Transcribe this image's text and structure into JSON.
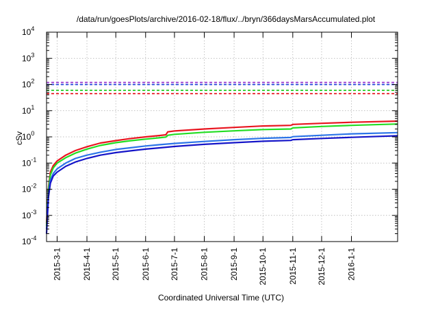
{
  "chart_data": {
    "type": "line",
    "title": "/data/run/goesPlots/archive/2016-02-18/flux/../bryn/366daysMarsAccumulated.plot",
    "xlabel": "Coordinated Universal Time (UTC)",
    "ylabel": "cSv",
    "yscale": "log",
    "ylim": [
      0.0001,
      10000
    ],
    "xlim": [
      "2015-02-18",
      "2016-02-18"
    ],
    "y_ticks": [
      {
        "base": "10",
        "exp": "-4",
        "value": 0.0001
      },
      {
        "base": "10",
        "exp": "-3",
        "value": 0.001
      },
      {
        "base": "10",
        "exp": "-2",
        "value": 0.01
      },
      {
        "base": "10",
        "exp": "-1",
        "value": 0.1
      },
      {
        "base": "10",
        "exp": "0",
        "value": 1
      },
      {
        "base": "10",
        "exp": "1",
        "value": 10
      },
      {
        "base": "10",
        "exp": "2",
        "value": 100
      },
      {
        "base": "10",
        "exp": "3",
        "value": 1000
      },
      {
        "base": "10",
        "exp": "4",
        "value": 10000
      }
    ],
    "x_ticks": [
      {
        "label": "2015-3-1",
        "date": "2015-03-01"
      },
      {
        "label": "2015-4-1",
        "date": "2015-04-01"
      },
      {
        "label": "2015-5-1",
        "date": "2015-05-01"
      },
      {
        "label": "2015-6-1",
        "date": "2015-06-01"
      },
      {
        "label": "2015-7-1",
        "date": "2015-07-01"
      },
      {
        "label": "2015-8-1",
        "date": "2015-08-01"
      },
      {
        "label": "2015-9-1",
        "date": "2015-09-01"
      },
      {
        "label": "2015-10-1",
        "date": "2015-10-01"
      },
      {
        "label": "2015-11-1",
        "date": "2015-11-01"
      },
      {
        "label": "2015-12-1",
        "date": "2015-12-01"
      },
      {
        "label": "2016-1-1",
        "date": "2016-01-01"
      }
    ],
    "grid": true,
    "series": [
      {
        "color": "#e8141e",
        "x": [
          "2015-02-18",
          "2015-02-20",
          "2015-02-22",
          "2015-02-25",
          "2015-03-01",
          "2015-03-10",
          "2015-03-20",
          "2015-04-01",
          "2015-04-15",
          "2015-05-01",
          "2015-05-15",
          "2015-06-01",
          "2015-06-15",
          "2015-06-22",
          "2015-06-24",
          "2015-07-01",
          "2015-08-01",
          "2015-09-01",
          "2015-10-01",
          "2015-10-30",
          "2015-11-01",
          "2015-12-01",
          "2016-01-01",
          "2016-02-18"
        ],
        "y": [
          0.0005,
          0.012,
          0.045,
          0.08,
          0.12,
          0.2,
          0.3,
          0.42,
          0.58,
          0.72,
          0.85,
          1.0,
          1.12,
          1.2,
          1.55,
          1.68,
          2.0,
          2.3,
          2.6,
          2.75,
          3.0,
          3.3,
          3.6,
          4.0
        ]
      },
      {
        "color": "#22dd22",
        "x": [
          "2015-02-18",
          "2015-02-20",
          "2015-02-22",
          "2015-02-25",
          "2015-03-01",
          "2015-03-10",
          "2015-03-20",
          "2015-04-01",
          "2015-04-15",
          "2015-05-01",
          "2015-05-15",
          "2015-06-01",
          "2015-06-15",
          "2015-06-22",
          "2015-06-24",
          "2015-07-01",
          "2015-08-01",
          "2015-09-01",
          "2015-10-01",
          "2015-10-30",
          "2015-11-01",
          "2015-12-01",
          "2016-01-01",
          "2016-02-18"
        ],
        "y": [
          0.0004,
          0.01,
          0.035,
          0.065,
          0.1,
          0.16,
          0.24,
          0.34,
          0.47,
          0.6,
          0.7,
          0.82,
          0.92,
          0.98,
          1.15,
          1.25,
          1.5,
          1.7,
          1.9,
          2.0,
          2.2,
          2.5,
          2.75,
          3.1
        ]
      },
      {
        "color": "#2b74e8",
        "x": [
          "2015-02-18",
          "2015-02-20",
          "2015-02-22",
          "2015-02-25",
          "2015-03-01",
          "2015-03-10",
          "2015-03-20",
          "2015-04-01",
          "2015-04-15",
          "2015-05-01",
          "2015-05-15",
          "2015-06-01",
          "2015-06-15",
          "2015-07-01",
          "2015-08-01",
          "2015-09-01",
          "2015-10-01",
          "2015-10-30",
          "2015-11-01",
          "2015-12-01",
          "2016-01-01",
          "2016-02-18"
        ],
        "y": [
          0.0003,
          0.007,
          0.022,
          0.04,
          0.06,
          0.1,
          0.15,
          0.2,
          0.26,
          0.33,
          0.38,
          0.45,
          0.5,
          0.56,
          0.67,
          0.78,
          0.88,
          0.95,
          1.02,
          1.15,
          1.3,
          1.45
        ]
      },
      {
        "color": "#1414c8",
        "x": [
          "2015-02-18",
          "2015-02-20",
          "2015-02-22",
          "2015-02-25",
          "2015-03-01",
          "2015-03-10",
          "2015-03-20",
          "2015-04-01",
          "2015-04-15",
          "2015-05-01",
          "2015-05-15",
          "2015-06-01",
          "2015-06-15",
          "2015-07-01",
          "2015-08-01",
          "2015-09-01",
          "2015-10-01",
          "2015-10-30",
          "2015-11-01",
          "2015-12-01",
          "2016-01-01",
          "2016-02-18"
        ],
        "y": [
          0.0002,
          0.005,
          0.017,
          0.032,
          0.045,
          0.075,
          0.11,
          0.15,
          0.2,
          0.25,
          0.29,
          0.34,
          0.38,
          0.43,
          0.52,
          0.6,
          0.68,
          0.73,
          0.78,
          0.87,
          0.96,
          1.1
        ]
      }
    ],
    "reference_lines": [
      {
        "color": "#9933cc",
        "y": 120
      },
      {
        "color": "#2244dd",
        "y": 100
      },
      {
        "color": "#22cc22",
        "y": 60
      },
      {
        "color": "#e8141e",
        "y": 45
      }
    ]
  }
}
